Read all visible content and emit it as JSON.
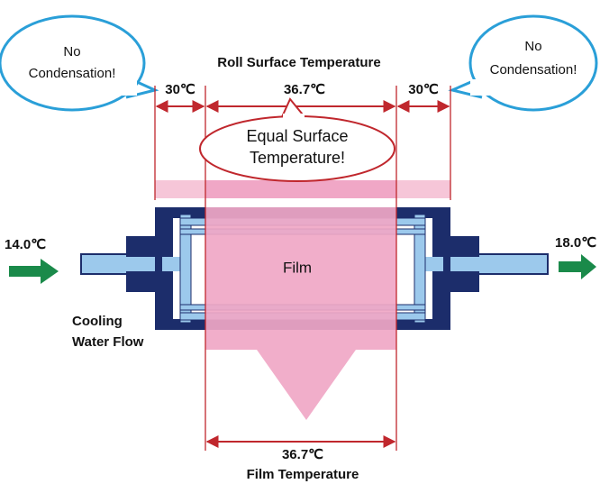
{
  "left_bubble": [
    "No",
    "Condensation!"
  ],
  "right_bubble": [
    "No",
    "Condensation!"
  ],
  "title": "Roll Surface Temperature",
  "surface_temps": [
    "30℃",
    "36.7℃",
    "30℃"
  ],
  "callout": [
    "Equal Surface",
    "Temperature!"
  ],
  "inlet_temp": "14.0℃",
  "outlet_temp": "18.0℃",
  "flow_label": [
    "Cooling",
    "Water Flow"
  ],
  "film_label": "Film",
  "film_temp": "36.7℃",
  "film_temp_label": "Film Temperature"
}
